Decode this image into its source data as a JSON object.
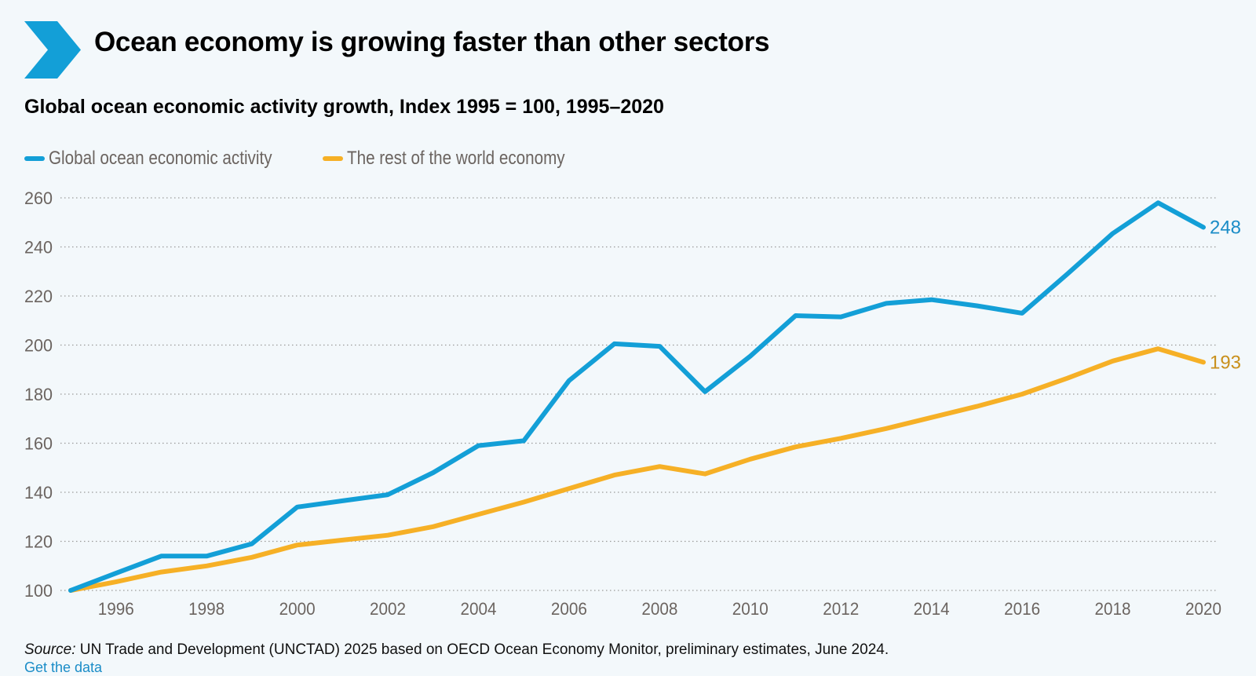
{
  "header": {
    "title": "Ocean economy is growing faster than other sectors",
    "subtitle": "Global ocean economic activity growth, Index 1995 = 100, 1995–2020"
  },
  "legend": {
    "items": [
      {
        "label": "Global ocean economic activity",
        "color": "#139fd7"
      },
      {
        "label": "The rest of the world economy",
        "color": "#f6b026"
      }
    ]
  },
  "footer": {
    "source_label": "Source:",
    "source_text": "UN Trade and Development (UNCTAD) 2025 based on OECD Ocean Economy Monitor, preliminary estimates, June 2024.",
    "link_text": "Get the data"
  },
  "chart_data": {
    "type": "line",
    "x": [
      1995,
      1996,
      1997,
      1998,
      1999,
      2000,
      2001,
      2002,
      2003,
      2004,
      2005,
      2006,
      2007,
      2008,
      2009,
      2010,
      2011,
      2012,
      2013,
      2014,
      2015,
      2016,
      2017,
      2018,
      2019,
      2020
    ],
    "x_ticks": [
      "1996",
      "1998",
      "2000",
      "2002",
      "2004",
      "2006",
      "2008",
      "2010",
      "2012",
      "2014",
      "2016",
      "2018",
      "2020"
    ],
    "y_ticks": [
      "100",
      "120",
      "140",
      "160",
      "180",
      "200",
      "220",
      "240",
      "260"
    ],
    "ylim": [
      100,
      260
    ],
    "grid": "horizontal dotted",
    "legend_position": "top-left",
    "series": [
      {
        "name": "Global ocean economic activity",
        "color": "#139fd7",
        "end_label": "248",
        "values": [
          100,
          107,
          114,
          114,
          119,
          134,
          136.5,
          139,
          148,
          159,
          161,
          185.5,
          200.5,
          199.5,
          181,
          195.5,
          212,
          211.5,
          217,
          218.5,
          216,
          213,
          229,
          245.5,
          258,
          248
        ]
      },
      {
        "name": "The rest of the world economy",
        "color": "#f6b026",
        "end_label": "193",
        "values": [
          100,
          103.5,
          107.5,
          110,
          113.5,
          118.5,
          120.5,
          122.5,
          126,
          131,
          136,
          141.5,
          147,
          150.5,
          147.5,
          153.5,
          158.5,
          162,
          166,
          170.5,
          175,
          180,
          186.5,
          193.5,
          198.5,
          193
        ]
      }
    ]
  }
}
